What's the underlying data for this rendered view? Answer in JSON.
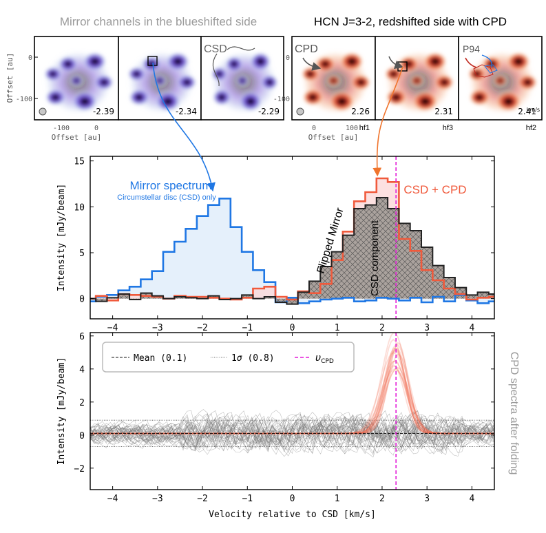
{
  "header": {
    "left_title": "Mirror channels in the blueshifted side",
    "right_title": "HCN J=3-2, redshifted side with CPD"
  },
  "top_panels": {
    "y_axis_label": "Offset [au]",
    "x_axis_label_left": "Offset [au]",
    "x_axis_label_right": "Offset [au]",
    "y_ticks": [
      "0",
      "-100"
    ],
    "x_ticks_left": [
      "-100",
      "0"
    ],
    "x_ticks_right": [
      "0",
      "100"
    ],
    "left_channels": [
      "-2.39",
      "-2.34",
      "-2.29"
    ],
    "right_channels": [
      "2.26",
      "2.31",
      "2.41"
    ],
    "right_unit": "km/s",
    "hf_labels": [
      "hf1",
      "hf3",
      "hf2"
    ],
    "annotations": {
      "csd": "CSD",
      "cpd": "CPD",
      "p94": "P94"
    },
    "colors": {
      "blue_map": "#6a3fd0",
      "red_map": "#d9342b"
    }
  },
  "chart_data": [
    {
      "type": "line",
      "step": true,
      "title": "",
      "xlabel": "",
      "ylabel": "Intensity [mJy/beam]",
      "xlim": [
        -4.5,
        4.5
      ],
      "ylim": [
        -2.2,
        15.5
      ],
      "x_ticks": [
        -4,
        -3,
        -2,
        -1,
        0,
        1,
        2,
        3,
        4
      ],
      "y_ticks": [
        0,
        5,
        10,
        15
      ],
      "vline": 2.31,
      "x": [
        -4.5,
        -4.25,
        -4.0,
        -3.75,
        -3.5,
        -3.25,
        -3.0,
        -2.75,
        -2.5,
        -2.25,
        -2.0,
        -1.75,
        -1.5,
        -1.25,
        -1.0,
        -0.75,
        -0.5,
        -0.25,
        0.0,
        0.25,
        0.5,
        0.75,
        1.0,
        1.25,
        1.5,
        1.75,
        2.0,
        2.25,
        2.5,
        2.75,
        3.0,
        3.25,
        3.5,
        3.75,
        4.0,
        4.25,
        4.5
      ],
      "series": [
        {
          "name": "Mirror spectrum",
          "sublabel": "Circumstellar disc (CSD) only",
          "color": "#1f77e4",
          "values": [
            -0.3,
            0.2,
            0.4,
            0.9,
            1.3,
            2.1,
            3.0,
            5.1,
            6.2,
            7.6,
            9.0,
            10.2,
            10.9,
            7.8,
            5.1,
            3.1,
            1.8,
            -0.4,
            0.1,
            -0.5,
            -0.3,
            -0.1,
            0.0,
            0.1,
            -0.3,
            -0.2,
            0.1,
            0.0,
            -0.2,
            0.1,
            -0.4,
            0.2,
            -0.3,
            0.4,
            -0.2,
            -0.5,
            -0.3
          ]
        },
        {
          "name": "CSD + CPD",
          "color": "#f05a3c",
          "values": [
            0.0,
            0.3,
            -0.2,
            0.5,
            0.4,
            0.3,
            0.2,
            0.0,
            0.3,
            0.2,
            0.2,
            0.1,
            0.0,
            -0.1,
            0.1,
            1.1,
            1.3,
            0.2,
            -0.1,
            0.8,
            0.6,
            1.6,
            4.2,
            7.3,
            10.6,
            11.6,
            13.1,
            12.7,
            6.5,
            5.2,
            3.1,
            2.0,
            1.1,
            0.5,
            -0.1,
            0.1,
            0.2
          ]
        },
        {
          "name": "CSD component",
          "color": "#222222",
          "values": [
            0.0,
            -0.3,
            0.1,
            0.5,
            -0.1,
            0.6,
            0.3,
            0.0,
            0.2,
            0.1,
            0.0,
            0.3,
            -0.1,
            0.0,
            0.4,
            0.0,
            0.2,
            -0.4,
            -0.6,
            0.7,
            1.9,
            3.5,
            5.1,
            6.9,
            9.8,
            10.2,
            11.0,
            9.8,
            8.2,
            7.4,
            5.6,
            3.6,
            2.3,
            1.2,
            0.4,
            0.7,
            0.5
          ]
        }
      ],
      "annotations": {
        "mirror_spectrum": "Mirror spectrum",
        "mirror_sub": "Circumstellar disc (CSD) only",
        "csd_cpd": "CSD + CPD",
        "flipped_mirror": "Flipped Mirror",
        "csd_component": "CSD component"
      }
    },
    {
      "type": "line",
      "title": "",
      "xlabel": "Velocity relative to CSD [km/s]",
      "ylabel": "Intensity [mJy/beam]",
      "xlim": [
        -4.5,
        4.5
      ],
      "ylim": [
        -3.3,
        6.2
      ],
      "x_ticks": [
        -4,
        -3,
        -2,
        -1,
        0,
        1,
        2,
        3,
        4
      ],
      "y_ticks": [
        -2,
        0,
        2,
        4,
        6
      ],
      "mean": 0.1,
      "sigma": 0.8,
      "vline": 2.31,
      "cpd_profile": {
        "center": 2.31,
        "width": 0.25,
        "peak": 4.7
      },
      "legend": {
        "mean": "Mean (0.1)",
        "sigma_prefix": "1",
        "sigma_symbol": "σ",
        "sigma_suffix": " (0.8)",
        "vcpd_symbol": "υ",
        "vcpd_sub": "CPD"
      },
      "side_label": "CPD spectra after folding"
    }
  ]
}
